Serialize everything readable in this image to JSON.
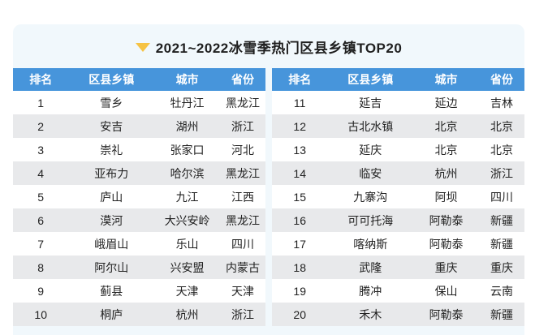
{
  "title": {
    "marker_icon": "triangle-down-icon",
    "text": "2021~2022冰雪季热门区县乡镇TOP20"
  },
  "colors": {
    "panel_bg": "#F1F8FC",
    "header_bg": "#4795DB",
    "header_text": "#FFFFFF",
    "row_bg": "#FFFFFF",
    "row_alt_bg": "#E8E9EB",
    "title_text": "#1F1F1F",
    "marker": "#F6C344"
  },
  "chart_data": {
    "type": "table",
    "title": "2021~2022冰雪季热门区县乡镇TOP20",
    "columns": [
      "排名",
      "区县乡镇",
      "城市",
      "省份"
    ],
    "tables": [
      {
        "rows": [
          [
            "1",
            "雪乡",
            "牡丹江",
            "黑龙江"
          ],
          [
            "2",
            "安吉",
            "湖州",
            "浙江"
          ],
          [
            "3",
            "崇礼",
            "张家口",
            "河北"
          ],
          [
            "4",
            "亚布力",
            "哈尔滨",
            "黑龙江"
          ],
          [
            "5",
            "庐山",
            "九江",
            "江西"
          ],
          [
            "6",
            "漠河",
            "大兴安岭",
            "黑龙江"
          ],
          [
            "7",
            "峨眉山",
            "乐山",
            "四川"
          ],
          [
            "8",
            "阿尔山",
            "兴安盟",
            "内蒙古"
          ],
          [
            "9",
            "蓟县",
            "天津",
            "天津"
          ],
          [
            "10",
            "桐庐",
            "杭州",
            "浙江"
          ]
        ]
      },
      {
        "rows": [
          [
            "11",
            "延吉",
            "延边",
            "吉林"
          ],
          [
            "12",
            "古北水镇",
            "北京",
            "北京"
          ],
          [
            "13",
            "延庆",
            "北京",
            "北京"
          ],
          [
            "14",
            "临安",
            "杭州",
            "浙江"
          ],
          [
            "15",
            "九寨沟",
            "阿坝",
            "四川"
          ],
          [
            "16",
            "可可托海",
            "阿勒泰",
            "新疆"
          ],
          [
            "17",
            "喀纳斯",
            "阿勒泰",
            "新疆"
          ],
          [
            "18",
            "武隆",
            "重庆",
            "重庆"
          ],
          [
            "19",
            "腾冲",
            "保山",
            "云南"
          ],
          [
            "20",
            "禾木",
            "阿勒泰",
            "新疆"
          ]
        ]
      }
    ]
  }
}
